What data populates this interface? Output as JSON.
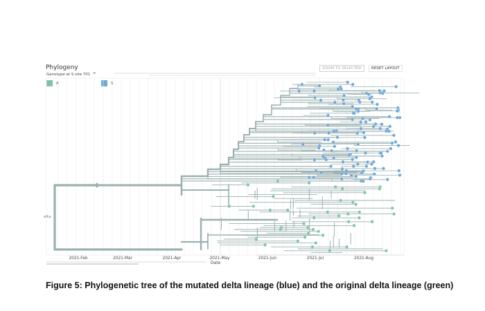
{
  "panel": {
    "title": "Phylogeny",
    "color_by_label": "Genotype at S site 701",
    "zoom_button": "ZOOM TO SELECTED",
    "reset_button": "RESET LAYOUT",
    "root_tag": "elta"
  },
  "legend": [
    {
      "label": "A",
      "color": "#7fc4a8"
    },
    {
      "label": "S",
      "color": "#6fa8d6"
    }
  ],
  "chart_data": {
    "type": "phylogenetic tree",
    "xlabel": "Date",
    "x_ticks": [
      "2021-Feb",
      "2021-Mar",
      "2021-Apr",
      "2021-May",
      "2021-Jun",
      "2021-Jul",
      "2021-Aug"
    ],
    "clades": [
      {
        "genotype": "S",
        "color": "#6fa8d6",
        "tip_count": 60
      },
      {
        "genotype": "A",
        "color": "#7fc4a8",
        "tip_count": 55
      }
    ],
    "branch_color": "#9bb0b0",
    "grid": true
  },
  "caption": "Figure 5: Phylogenetic tree of the mutated delta lineage (blue) and the original delta lineage (green)"
}
